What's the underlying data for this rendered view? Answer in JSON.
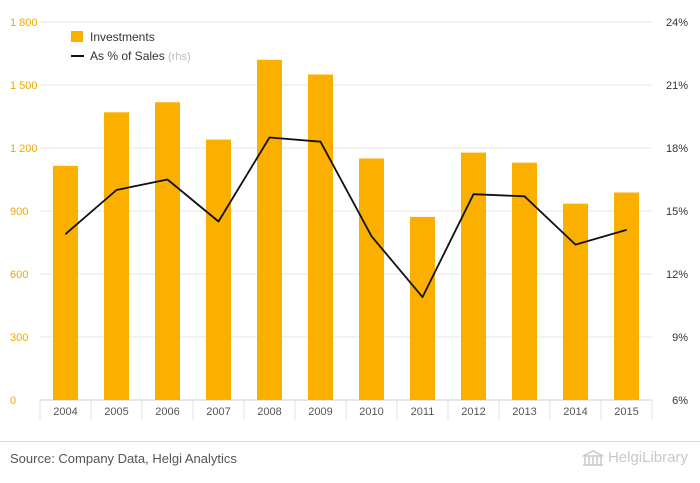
{
  "chart_data": {
    "type": "bar",
    "categories": [
      "2004",
      "2005",
      "2006",
      "2007",
      "2008",
      "2009",
      "2010",
      "2011",
      "2012",
      "2013",
      "2014",
      "2015"
    ],
    "series": [
      {
        "name": "Investments",
        "type": "bar",
        "axis": "left",
        "color": "#FBB000",
        "values": [
          1115,
          1370,
          1418,
          1240,
          1620,
          1550,
          1150,
          872,
          1178,
          1130,
          935,
          988
        ]
      },
      {
        "name": "As % of Sales",
        "name_suffix": "(rhs)",
        "type": "line",
        "axis": "right",
        "color": "#111111",
        "values": [
          13.9,
          16.0,
          16.5,
          14.5,
          18.5,
          18.3,
          13.8,
          10.9,
          15.8,
          15.7,
          13.4,
          14.1
        ]
      }
    ],
    "y_left": {
      "ylim": [
        0,
        1800
      ],
      "ticks": [
        0,
        300,
        600,
        900,
        1200,
        1500,
        1800
      ],
      "tick_labels": [
        "0",
        "300",
        "600",
        "900",
        "1 200",
        "1 500",
        "1 800"
      ],
      "color": "#F0A800"
    },
    "y_right": {
      "ylim": [
        6,
        24
      ],
      "ticks": [
        6,
        9,
        12,
        15,
        18,
        21,
        24
      ],
      "tick_labels": [
        "6%",
        "9%",
        "12%",
        "15%",
        "18%",
        "21%",
        "24%"
      ]
    },
    "grid": true,
    "legend": "top-left"
  },
  "footer": {
    "source": "Source: Company Data, Helgi Analytics",
    "logo_text": "HelgiLibrary"
  }
}
